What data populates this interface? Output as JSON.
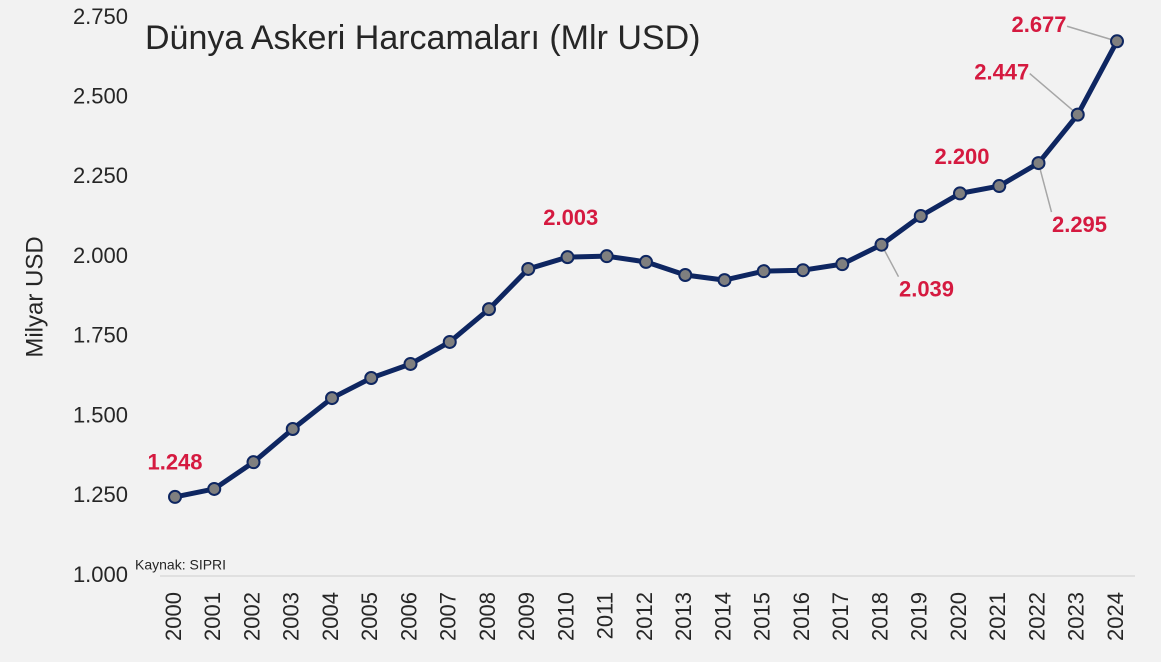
{
  "chart_data": {
    "type": "line",
    "title": "Dünya Askeri Harcamaları (Mlr USD)",
    "y_label": "Milyar USD",
    "source": "Kaynak: SIPRI",
    "categories": [
      "2000",
      "2001",
      "2002",
      "2003",
      "2004",
      "2005",
      "2006",
      "2007",
      "2008",
      "2009",
      "2010",
      "2011",
      "2012",
      "2013",
      "2014",
      "2015",
      "2016",
      "2017",
      "2018",
      "2019",
      "2020",
      "2021",
      "2022",
      "2023",
      "2024"
    ],
    "series": [
      {
        "name": "Dünya Askeri Harcamaları",
        "color": "#0e2661",
        "values": [
          1248,
          1273,
          1357,
          1461,
          1558,
          1621,
          1665,
          1734,
          1837,
          1963,
          2000,
          2003,
          1985,
          1944,
          1928,
          1956,
          1959,
          1978,
          2039,
          2129,
          2200,
          2223,
          2295,
          2447,
          2677
        ],
        "value_labels": [
          "1.248",
          null,
          null,
          null,
          null,
          null,
          null,
          null,
          null,
          null,
          null,
          "2.003",
          null,
          null,
          null,
          null,
          null,
          null,
          "2.039",
          null,
          "2.200",
          null,
          "2.295",
          "2.447",
          "2.677"
        ]
      }
    ],
    "ylim": [
      1000,
      2750
    ],
    "yticks": [
      {
        "value": 1000,
        "label": "1.000"
      },
      {
        "value": 1250,
        "label": "1.250"
      },
      {
        "value": 1500,
        "label": "1.500"
      },
      {
        "value": 1750,
        "label": "1.750"
      },
      {
        "value": 2000,
        "label": "2.000"
      },
      {
        "value": 2250,
        "label": "2.250"
      },
      {
        "value": 2500,
        "label": "2.500"
      },
      {
        "value": 2750,
        "label": "2.750"
      }
    ],
    "grid": false,
    "marker_color": "#7f7f7f",
    "label_color": "#d51a40"
  }
}
